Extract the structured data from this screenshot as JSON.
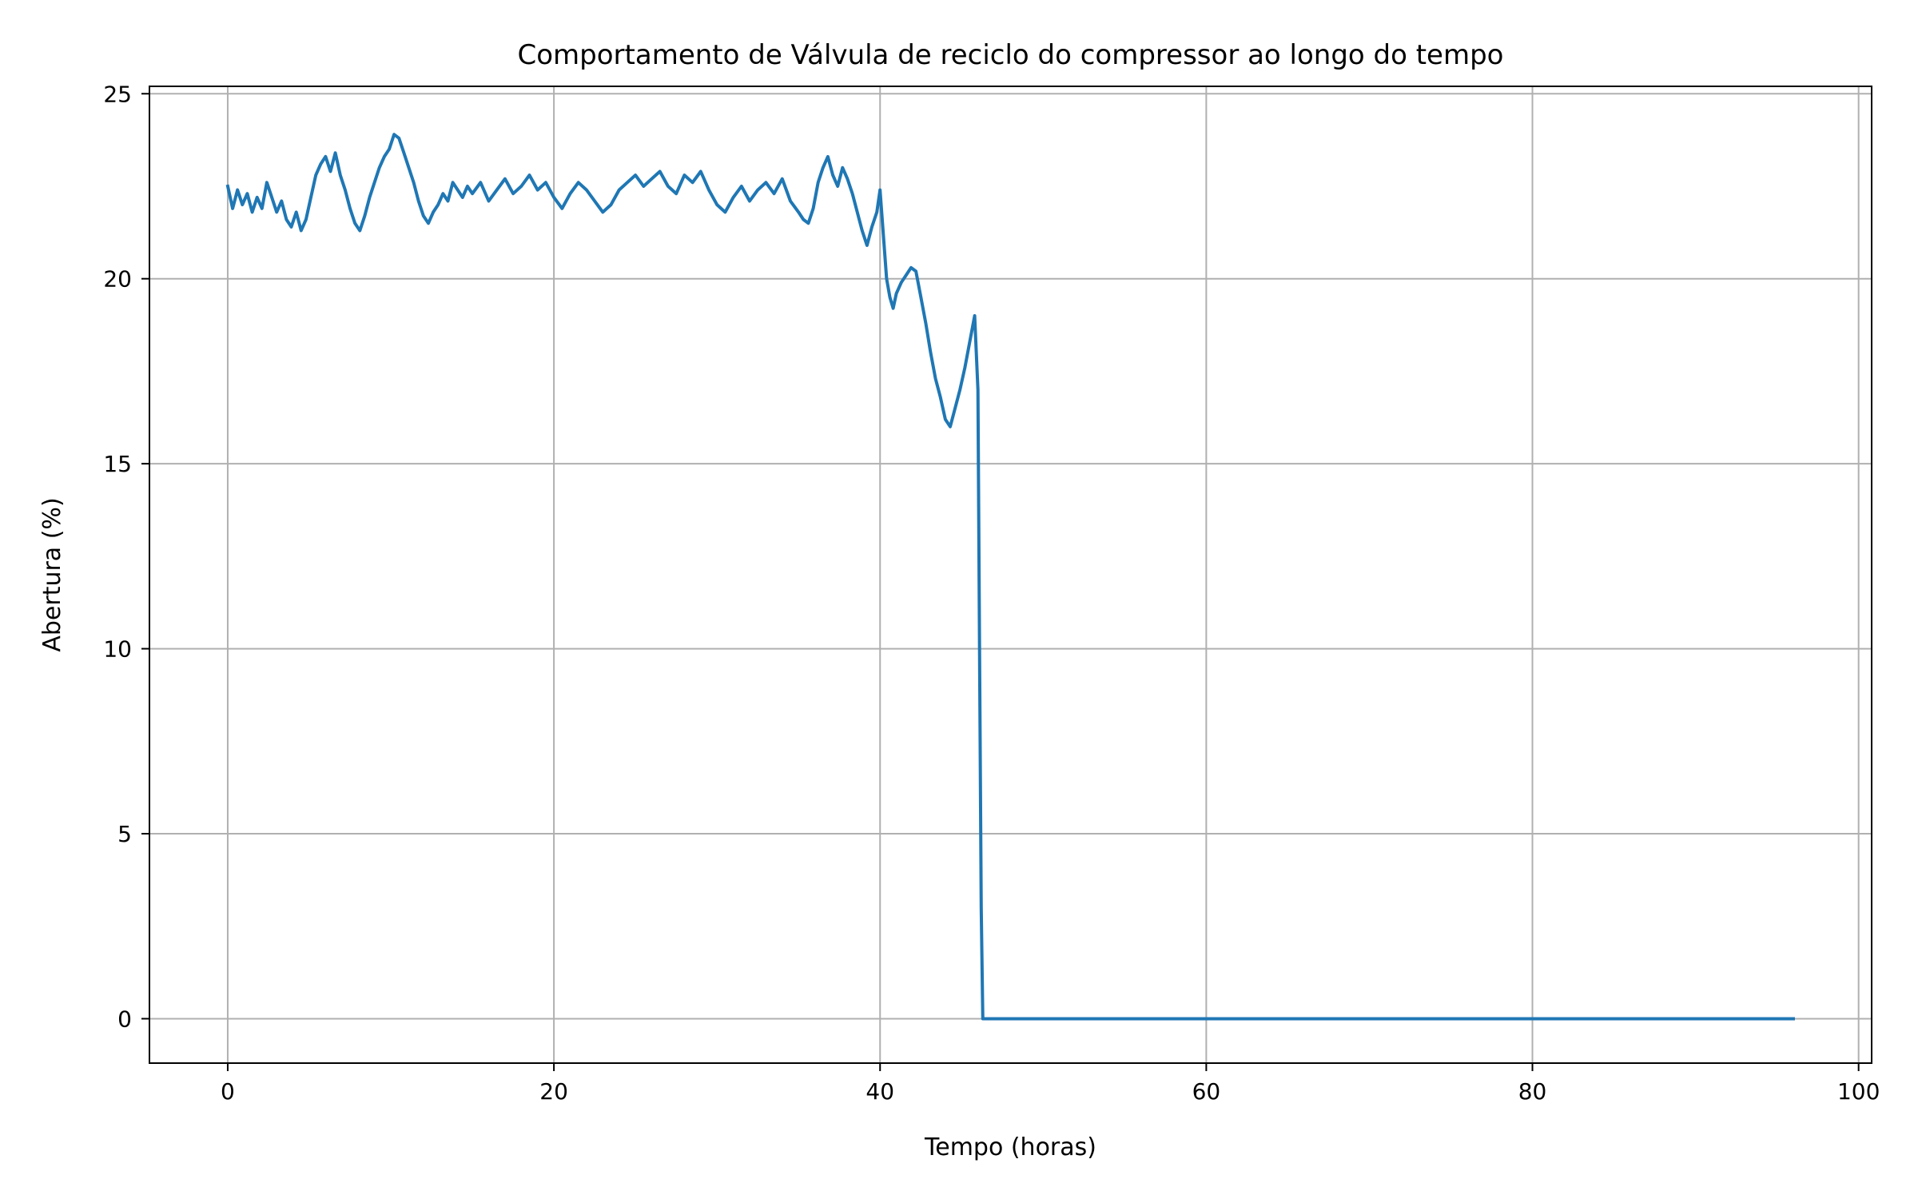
{
  "chart_data": {
    "type": "line",
    "title": "Comportamento de Válvula de reciclo do compressor ao longo do tempo",
    "xlabel": "Tempo (horas)",
    "ylabel": "Abertura (%)",
    "xlim": [
      -4.8,
      100.8
    ],
    "ylim": [
      -1.2,
      25.2
    ],
    "xticks": [
      0,
      20,
      40,
      60,
      80,
      100
    ],
    "yticks": [
      0,
      5,
      10,
      15,
      20,
      25
    ],
    "grid": true,
    "legend": "none",
    "series": [
      {
        "color": "#1f77b4",
        "x": [
          0,
          0.3,
          0.6,
          0.9,
          1.2,
          1.5,
          1.8,
          2.1,
          2.4,
          2.7,
          3.0,
          3.3,
          3.6,
          3.9,
          4.2,
          4.5,
          4.8,
          5.1,
          5.4,
          5.7,
          6.0,
          6.3,
          6.6,
          6.9,
          7.2,
          7.5,
          7.8,
          8.1,
          8.4,
          8.7,
          9.0,
          9.3,
          9.6,
          9.9,
          10.2,
          10.5,
          10.8,
          11.1,
          11.4,
          11.7,
          12.0,
          12.3,
          12.6,
          12.9,
          13.2,
          13.5,
          13.8,
          14.1,
          14.4,
          14.7,
          15.0,
          15.5,
          16.0,
          16.5,
          17.0,
          17.5,
          18.0,
          18.5,
          19.0,
          19.5,
          20.0,
          20.5,
          21.0,
          21.5,
          22.0,
          22.5,
          23.0,
          23.5,
          24.0,
          24.5,
          25.0,
          25.5,
          26.0,
          26.5,
          27.0,
          27.5,
          28.0,
          28.5,
          29.0,
          29.5,
          30.0,
          30.5,
          31.0,
          31.5,
          32.0,
          32.5,
          33.0,
          33.5,
          34.0,
          34.5,
          35.0,
          35.3,
          35.6,
          35.9,
          36.2,
          36.5,
          36.8,
          37.1,
          37.4,
          37.7,
          38.0,
          38.3,
          38.6,
          38.9,
          39.2,
          39.5,
          39.8,
          40.0,
          40.2,
          40.4,
          40.6,
          40.8,
          41.0,
          41.3,
          41.6,
          41.9,
          42.2,
          42.5,
          42.8,
          43.1,
          43.4,
          43.7,
          44.0,
          44.3,
          44.6,
          44.9,
          45.2,
          45.5,
          45.8,
          46.0,
          46.1,
          46.2,
          46.3,
          46.4,
          47.0,
          50.0,
          60.0,
          70.0,
          80.0,
          90.0,
          96.0
        ],
        "y": [
          22.5,
          21.9,
          22.4,
          22.0,
          22.3,
          21.8,
          22.2,
          21.9,
          22.6,
          22.2,
          21.8,
          22.1,
          21.6,
          21.4,
          21.8,
          21.3,
          21.6,
          22.2,
          22.8,
          23.1,
          23.3,
          22.9,
          23.4,
          22.8,
          22.4,
          21.9,
          21.5,
          21.3,
          21.7,
          22.2,
          22.6,
          23.0,
          23.3,
          23.5,
          23.9,
          23.8,
          23.4,
          23.0,
          22.6,
          22.1,
          21.7,
          21.5,
          21.8,
          22.0,
          22.3,
          22.1,
          22.6,
          22.4,
          22.2,
          22.5,
          22.3,
          22.6,
          22.1,
          22.4,
          22.7,
          22.3,
          22.5,
          22.8,
          22.4,
          22.6,
          22.2,
          21.9,
          22.3,
          22.6,
          22.4,
          22.1,
          21.8,
          22.0,
          22.4,
          22.6,
          22.8,
          22.5,
          22.7,
          22.9,
          22.5,
          22.3,
          22.8,
          22.6,
          22.9,
          22.4,
          22.0,
          21.8,
          22.2,
          22.5,
          22.1,
          22.4,
          22.6,
          22.3,
          22.7,
          22.1,
          21.8,
          21.6,
          21.5,
          21.9,
          22.6,
          23.0,
          23.3,
          22.8,
          22.5,
          23.0,
          22.7,
          22.3,
          21.8,
          21.3,
          20.9,
          21.4,
          21.8,
          22.4,
          21.2,
          20.0,
          19.5,
          19.2,
          19.6,
          19.9,
          20.1,
          20.3,
          20.2,
          19.5,
          18.8,
          18.0,
          17.3,
          16.8,
          16.2,
          16.0,
          16.5,
          17.0,
          17.6,
          18.3,
          19.0,
          17.0,
          10.0,
          3.0,
          0.0,
          0.0,
          0.0,
          0.0,
          0.0,
          0.0,
          0.0,
          0.0,
          0.0
        ]
      }
    ]
  }
}
